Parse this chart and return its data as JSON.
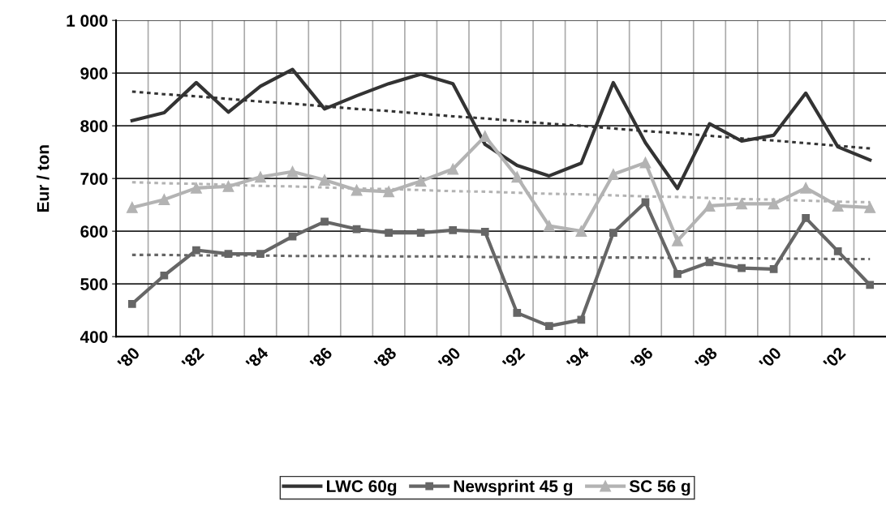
{
  "chart_data": {
    "type": "line",
    "ylabel": "Eur / ton",
    "categories": [
      "'80",
      null,
      "'82",
      null,
      "'84",
      null,
      "'86",
      null,
      "'88",
      null,
      "'90",
      null,
      "'92",
      null,
      "'94",
      null,
      "'96",
      null,
      "'98",
      null,
      "'00",
      null,
      "'02",
      null
    ],
    "series": [
      {
        "name": "LWC 60g",
        "color": "#333333",
        "marker": "none",
        "line_style": "solid",
        "values": [
          810,
          825,
          882,
          826,
          875,
          907,
          832,
          857,
          880,
          898,
          880,
          765,
          725,
          705,
          729,
          882,
          768,
          681,
          804,
          771,
          782,
          862,
          760,
          735
        ]
      },
      {
        "name": "Newsprint 45 g",
        "color": "#666666",
        "marker": "square",
        "line_style": "solid",
        "values": [
          462,
          516,
          564,
          557,
          557,
          590,
          618,
          604,
          597,
          597,
          602,
          599,
          445,
          420,
          432,
          597,
          655,
          519,
          541,
          530,
          528,
          625,
          562,
          498
        ]
      },
      {
        "name": "SC 56 g",
        "color": "#b3b3b3",
        "marker": "triangle",
        "line_style": "solid",
        "values": [
          645,
          660,
          682,
          685,
          703,
          713,
          697,
          678,
          675,
          695,
          718,
          780,
          703,
          610,
          600,
          708,
          730,
          582,
          648,
          652,
          652,
          682,
          648,
          645
        ]
      },
      {
        "color": "#333333",
        "marker": "none",
        "line_style": "dotted",
        "values": [
          865,
          860,
          856,
          851,
          846,
          842,
          837,
          832,
          828,
          823,
          818,
          814,
          809,
          804,
          800,
          795,
          790,
          786,
          781,
          776,
          772,
          767,
          762,
          757
        ]
      },
      {
        "color": "#666666",
        "marker": "none",
        "line_style": "dotted",
        "values": [
          555,
          555,
          554,
          554,
          554,
          553,
          553,
          553,
          552,
          552,
          552,
          551,
          551,
          551,
          550,
          550,
          550,
          549,
          549,
          549,
          548,
          548,
          547,
          547
        ]
      },
      {
        "color": "#b3b3b3",
        "marker": "none",
        "line_style": "dotted",
        "values": [
          693,
          691,
          690,
          688,
          686,
          685,
          683,
          681,
          680,
          678,
          676,
          675,
          673,
          671,
          670,
          668,
          666,
          665,
          663,
          661,
          660,
          658,
          656,
          655
        ]
      }
    ],
    "ylim": [
      400,
      1000
    ],
    "yticks": [
      400,
      500,
      600,
      700,
      800,
      900,
      {
        "value": 1000,
        "label": "1 000"
      }
    ],
    "grid": true,
    "legend": "bottom"
  }
}
